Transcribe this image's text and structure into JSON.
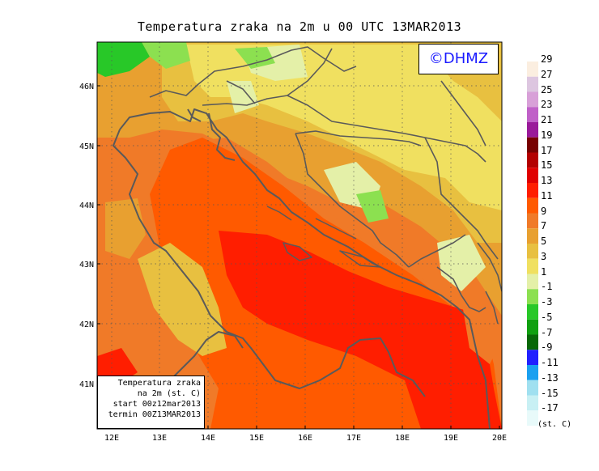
{
  "title": "Temperatura zraka na 2m u 00 UTC 13MAR2013",
  "logo": "©DHMZ",
  "info": {
    "line1": "Temperatura zraka",
    "line2": "na 2m (st. C)",
    "line3": "start 00z12mar2013",
    "line4": "termin 00Z13MAR2013"
  },
  "unit": "(st. C)",
  "lon_ticks": [
    "12E",
    "13E",
    "14E",
    "15E",
    "16E",
    "17E",
    "18E",
    "19E",
    "20E"
  ],
  "lat_ticks": [
    "46N",
    "45N",
    "44N",
    "43N",
    "42N",
    "41N"
  ],
  "legend": [
    {
      "label": "29",
      "color": "#fbeee0"
    },
    {
      "label": "27",
      "color": "#ddc6e0"
    },
    {
      "label": "25",
      "color": "#d8a0d8"
    },
    {
      "label": "23",
      "color": "#c060c8"
    },
    {
      "label": "21",
      "color": "#9a1a9a"
    },
    {
      "label": "19",
      "color": "#780000"
    },
    {
      "label": "17",
      "color": "#b30000"
    },
    {
      "label": "15",
      "color": "#e00000"
    },
    {
      "label": "13",
      "color": "#ff1e00"
    },
    {
      "label": "11",
      "color": "#ff5a00"
    },
    {
      "label": "9",
      "color": "#f07a28"
    },
    {
      "label": "7",
      "color": "#e8a030"
    },
    {
      "label": "5",
      "color": "#e8c040"
    },
    {
      "label": "3",
      "color": "#f0e060"
    },
    {
      "label": "1",
      "color": "#e4f0a8"
    },
    {
      "label": "-1",
      "color": "#8ce050"
    },
    {
      "label": "-3",
      "color": "#28c828"
    },
    {
      "label": "-5",
      "color": "#10a010"
    },
    {
      "label": "-7",
      "color": "#086808"
    },
    {
      "label": "-9",
      "color": "#2020ff"
    },
    {
      "label": "-11",
      "color": "#1aa0f0"
    },
    {
      "label": "-13",
      "color": "#a0e0f0"
    },
    {
      "label": "-15",
      "color": "#c8f0f4"
    },
    {
      "label": "-17",
      "color": "#e8fafa"
    }
  ]
}
